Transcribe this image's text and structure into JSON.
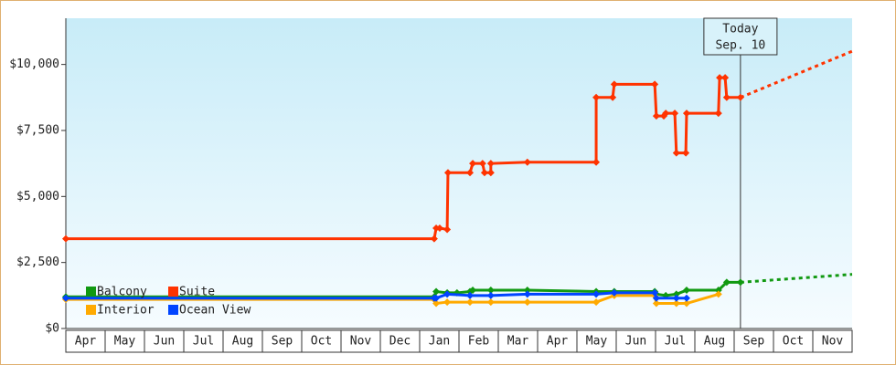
{
  "chart_data": {
    "type": "line",
    "categories": [
      "Apr",
      "May",
      "Jun",
      "Jul",
      "Aug",
      "Sep",
      "Oct",
      "Nov",
      "Dec",
      "Jan",
      "Feb",
      "Mar",
      "Apr",
      "May",
      "Jun",
      "Jul",
      "Aug",
      "Sep",
      "Oct",
      "Nov"
    ],
    "xlim": [
      0,
      20
    ],
    "ylim": [
      0,
      11750
    ],
    "yticks": [
      {
        "value": 0,
        "label": "$0"
      },
      {
        "value": 2500,
        "label": "$2,500"
      },
      {
        "value": 5000,
        "label": "$5,000"
      },
      {
        "value": 7500,
        "label": "$7,500"
      },
      {
        "value": 10000,
        "label": "$10,000"
      }
    ],
    "today": {
      "x": 17.16,
      "label": [
        "Today",
        "Sep. 10"
      ]
    },
    "series": [
      {
        "name": "Balcony",
        "color": "#119911",
        "x": [
          0,
          9.37,
          9.42,
          9.7,
          9.95,
          10.28,
          10.35,
          10.81,
          11.74,
          13.49,
          13.95,
          14.98,
          15.02,
          15.26,
          15.53,
          15.79,
          16.6,
          16.81,
          17.16
        ],
        "values": [
          1200,
          1200,
          1400,
          1350,
          1350,
          1400,
          1450,
          1450,
          1450,
          1400,
          1400,
          1400,
          1300,
          1250,
          1300,
          1450,
          1450,
          1750,
          1750
        ],
        "forecast_x": [
          17.16,
          20
        ],
        "forecast_values": [
          1750,
          2050
        ]
      },
      {
        "name": "Suite",
        "color": "#ff3300",
        "x": [
          0,
          9.37,
          9.42,
          9.51,
          9.7,
          9.72,
          10.28,
          10.35,
          10.6,
          10.65,
          10.81,
          10.81,
          11.74,
          13.49,
          13.49,
          13.91,
          13.95,
          14.98,
          15.02,
          15.21,
          15.26,
          15.49,
          15.53,
          15.77,
          15.79,
          16.6,
          16.63,
          16.77,
          16.81,
          17.16
        ],
        "values": [
          3400,
          3400,
          3800,
          3800,
          3750,
          5900,
          5900,
          6250,
          6250,
          5900,
          5900,
          6250,
          6300,
          6300,
          8750,
          8750,
          9250,
          9250,
          8050,
          8050,
          8150,
          8150,
          6650,
          6650,
          8150,
          8150,
          9500,
          9500,
          8750,
          8750
        ],
        "forecast_x": [
          17.16,
          20
        ],
        "forecast_values": [
          8750,
          10500
        ]
      },
      {
        "name": "Interior",
        "color": "#ffaa00",
        "x": [
          0,
          9.37,
          9.42,
          9.7,
          10.28,
          10.81,
          11.74,
          13.49,
          13.95,
          14.98,
          15.02,
          15.53,
          15.79,
          16.6
        ],
        "values": [
          1100,
          1100,
          950,
          1000,
          1000,
          1000,
          1000,
          1000,
          1250,
          1250,
          950,
          950,
          950,
          1300
        ]
      },
      {
        "name": "Ocean View",
        "color": "#0044ff",
        "x": [
          0,
          9.37,
          9.42,
          9.7,
          10.28,
          10.81,
          11.74,
          13.49,
          13.95,
          14.98,
          15.02,
          15.53,
          15.79
        ],
        "values": [
          1150,
          1150,
          1150,
          1300,
          1250,
          1250,
          1300,
          1300,
          1350,
          1350,
          1150,
          1150,
          1150
        ]
      }
    ]
  }
}
